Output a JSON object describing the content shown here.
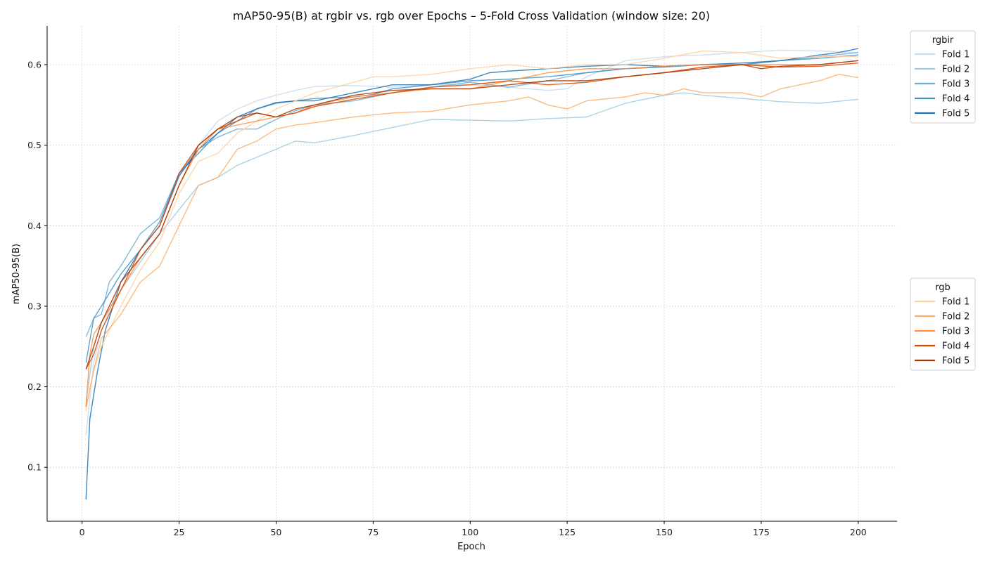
{
  "chart_data": {
    "type": "line",
    "title": "mAP50-95(B) at rgbir vs. rgb over Epochs – 5-Fold Cross Validation (window size: 20)",
    "xlabel": "Epoch",
    "ylabel": "mAP50-95(B)",
    "xlim": [
      -9,
      210
    ],
    "ylim": [
      0.033,
      0.648
    ],
    "xticks": [
      0,
      25,
      50,
      75,
      100,
      125,
      150,
      175,
      200
    ],
    "yticks": [
      0.1,
      0.2,
      0.3,
      0.4,
      0.5,
      0.6
    ],
    "grid": true,
    "legend_groups": [
      {
        "title": "rgbir",
        "placement": "upper-right-outside",
        "entries": [
          "Fold 1",
          "Fold 2",
          "Fold 3",
          "Fold 4",
          "Fold 5"
        ]
      },
      {
        "title": "rgb",
        "placement": "middle-right-outside",
        "entries": [
          "Fold 1",
          "Fold 2",
          "Fold 3",
          "Fold 4",
          "Fold 5"
        ]
      }
    ],
    "series": [
      {
        "group": "rgbir",
        "name": "Fold 1",
        "color": "#c6dbef",
        "points": [
          [
            1,
            0.14
          ],
          [
            3,
            0.23
          ],
          [
            5,
            0.27
          ],
          [
            10,
            0.33
          ],
          [
            15,
            0.37
          ],
          [
            20,
            0.4
          ],
          [
            25,
            0.46
          ],
          [
            30,
            0.5
          ],
          [
            35,
            0.53
          ],
          [
            40,
            0.545
          ],
          [
            45,
            0.555
          ],
          [
            50,
            0.562
          ],
          [
            55,
            0.568
          ],
          [
            60,
            0.573
          ],
          [
            70,
            0.574
          ],
          [
            80,
            0.572
          ],
          [
            90,
            0.575
          ],
          [
            100,
            0.575
          ],
          [
            110,
            0.572
          ],
          [
            120,
            0.568
          ],
          [
            125,
            0.57
          ],
          [
            130,
            0.585
          ],
          [
            135,
            0.595
          ],
          [
            140,
            0.605
          ],
          [
            150,
            0.61
          ],
          [
            160,
            0.612
          ],
          [
            170,
            0.615
          ],
          [
            180,
            0.618
          ],
          [
            190,
            0.617
          ],
          [
            200,
            0.615
          ]
        ]
      },
      {
        "group": "rgbir",
        "name": "Fold 2",
        "color": "#9ecae1",
        "points": [
          [
            1,
            0.18
          ],
          [
            3,
            0.25
          ],
          [
            5,
            0.28
          ],
          [
            10,
            0.32
          ],
          [
            15,
            0.355
          ],
          [
            20,
            0.39
          ],
          [
            25,
            0.42
          ],
          [
            30,
            0.45
          ],
          [
            35,
            0.46
          ],
          [
            40,
            0.475
          ],
          [
            45,
            0.485
          ],
          [
            50,
            0.495
          ],
          [
            55,
            0.505
          ],
          [
            60,
            0.503
          ],
          [
            70,
            0.512
          ],
          [
            80,
            0.522
          ],
          [
            90,
            0.532
          ],
          [
            100,
            0.531
          ],
          [
            110,
            0.53
          ],
          [
            120,
            0.533
          ],
          [
            130,
            0.535
          ],
          [
            140,
            0.552
          ],
          [
            150,
            0.562
          ],
          [
            155,
            0.565
          ],
          [
            160,
            0.562
          ],
          [
            170,
            0.558
          ],
          [
            180,
            0.554
          ],
          [
            190,
            0.552
          ],
          [
            200,
            0.557
          ]
        ]
      },
      {
        "group": "rgbir",
        "name": "Fold 3",
        "color": "#6baed6",
        "points": [
          [
            1,
            0.262
          ],
          [
            3,
            0.285
          ],
          [
            5,
            0.29
          ],
          [
            7,
            0.33
          ],
          [
            10,
            0.35
          ],
          [
            15,
            0.39
          ],
          [
            20,
            0.41
          ],
          [
            25,
            0.465
          ],
          [
            30,
            0.495
          ],
          [
            35,
            0.51
          ],
          [
            40,
            0.52
          ],
          [
            45,
            0.52
          ],
          [
            50,
            0.532
          ],
          [
            55,
            0.543
          ],
          [
            60,
            0.55
          ],
          [
            70,
            0.555
          ],
          [
            80,
            0.565
          ],
          [
            90,
            0.572
          ],
          [
            100,
            0.578
          ],
          [
            110,
            0.572
          ],
          [
            120,
            0.58
          ],
          [
            130,
            0.59
          ],
          [
            140,
            0.595
          ],
          [
            150,
            0.598
          ],
          [
            160,
            0.6
          ],
          [
            170,
            0.6
          ],
          [
            180,
            0.605
          ],
          [
            190,
            0.61
          ],
          [
            200,
            0.615
          ]
        ]
      },
      {
        "group": "rgbir",
        "name": "Fold 4",
        "color": "#4292c6",
        "points": [
          [
            1,
            0.23
          ],
          [
            3,
            0.285
          ],
          [
            5,
            0.3
          ],
          [
            10,
            0.34
          ],
          [
            15,
            0.37
          ],
          [
            20,
            0.405
          ],
          [
            25,
            0.465
          ],
          [
            30,
            0.49
          ],
          [
            35,
            0.515
          ],
          [
            40,
            0.53
          ],
          [
            45,
            0.545
          ],
          [
            50,
            0.552
          ],
          [
            55,
            0.555
          ],
          [
            60,
            0.558
          ],
          [
            70,
            0.56
          ],
          [
            75,
            0.563
          ],
          [
            80,
            0.57
          ],
          [
            90,
            0.575
          ],
          [
            100,
            0.58
          ],
          [
            110,
            0.582
          ],
          [
            120,
            0.585
          ],
          [
            130,
            0.59
          ],
          [
            140,
            0.595
          ],
          [
            150,
            0.597
          ],
          [
            160,
            0.6
          ],
          [
            170,
            0.6
          ],
          [
            180,
            0.605
          ],
          [
            190,
            0.608
          ],
          [
            200,
            0.612
          ]
        ]
      },
      {
        "group": "rgbir",
        "name": "Fold 5",
        "color": "#2171b5",
        "points": [
          [
            1,
            0.06
          ],
          [
            2,
            0.16
          ],
          [
            4,
            0.22
          ],
          [
            6,
            0.27
          ],
          [
            10,
            0.33
          ],
          [
            15,
            0.37
          ],
          [
            20,
            0.4
          ],
          [
            25,
            0.462
          ],
          [
            30,
            0.495
          ],
          [
            35,
            0.515
          ],
          [
            40,
            0.535
          ],
          [
            45,
            0.545
          ],
          [
            50,
            0.553
          ],
          [
            55,
            0.555
          ],
          [
            60,
            0.555
          ],
          [
            70,
            0.565
          ],
          [
            75,
            0.57
          ],
          [
            80,
            0.575
          ],
          [
            90,
            0.575
          ],
          [
            100,
            0.582
          ],
          [
            105,
            0.59
          ],
          [
            110,
            0.592
          ],
          [
            120,
            0.595
          ],
          [
            130,
            0.598
          ],
          [
            140,
            0.6
          ],
          [
            150,
            0.598
          ],
          [
            160,
            0.6
          ],
          [
            170,
            0.602
          ],
          [
            180,
            0.605
          ],
          [
            190,
            0.612
          ],
          [
            195,
            0.615
          ],
          [
            200,
            0.62
          ]
        ]
      },
      {
        "group": "rgb",
        "name": "Fold 1",
        "color": "#fdd0a2",
        "points": [
          [
            1,
            0.17
          ],
          [
            3,
            0.22
          ],
          [
            5,
            0.25
          ],
          [
            10,
            0.3
          ],
          [
            15,
            0.345
          ],
          [
            20,
            0.38
          ],
          [
            25,
            0.44
          ],
          [
            30,
            0.48
          ],
          [
            35,
            0.49
          ],
          [
            40,
            0.515
          ],
          [
            45,
            0.53
          ],
          [
            50,
            0.545
          ],
          [
            55,
            0.555
          ],
          [
            60,
            0.565
          ],
          [
            70,
            0.578
          ],
          [
            75,
            0.585
          ],
          [
            80,
            0.585
          ],
          [
            90,
            0.588
          ],
          [
            100,
            0.595
          ],
          [
            110,
            0.6
          ],
          [
            120,
            0.595
          ],
          [
            130,
            0.6
          ],
          [
            140,
            0.6
          ],
          [
            150,
            0.608
          ],
          [
            160,
            0.617
          ],
          [
            170,
            0.615
          ],
          [
            180,
            0.608
          ],
          [
            190,
            0.61
          ],
          [
            200,
            0.61
          ]
        ]
      },
      {
        "group": "rgb",
        "name": "Fold 2",
        "color": "#fdae6b",
        "points": [
          [
            1,
            0.175
          ],
          [
            3,
            0.22
          ],
          [
            5,
            0.26
          ],
          [
            10,
            0.29
          ],
          [
            15,
            0.33
          ],
          [
            20,
            0.35
          ],
          [
            25,
            0.4
          ],
          [
            30,
            0.45
          ],
          [
            35,
            0.46
          ],
          [
            40,
            0.495
          ],
          [
            45,
            0.505
          ],
          [
            50,
            0.52
          ],
          [
            55,
            0.525
          ],
          [
            60,
            0.528
          ],
          [
            70,
            0.535
          ],
          [
            80,
            0.54
          ],
          [
            90,
            0.542
          ],
          [
            100,
            0.55
          ],
          [
            110,
            0.555
          ],
          [
            115,
            0.56
          ],
          [
            120,
            0.55
          ],
          [
            125,
            0.545
          ],
          [
            130,
            0.555
          ],
          [
            140,
            0.56
          ],
          [
            145,
            0.565
          ],
          [
            150,
            0.562
          ],
          [
            155,
            0.57
          ],
          [
            160,
            0.565
          ],
          [
            170,
            0.565
          ],
          [
            175,
            0.56
          ],
          [
            180,
            0.57
          ],
          [
            185,
            0.575
          ],
          [
            190,
            0.58
          ],
          [
            195,
            0.588
          ],
          [
            200,
            0.584
          ]
        ]
      },
      {
        "group": "rgb",
        "name": "Fold 3",
        "color": "#fd8d3c",
        "points": [
          [
            1,
            0.175
          ],
          [
            2,
            0.24
          ],
          [
            3,
            0.265
          ],
          [
            5,
            0.28
          ],
          [
            10,
            0.32
          ],
          [
            15,
            0.36
          ],
          [
            20,
            0.39
          ],
          [
            25,
            0.45
          ],
          [
            30,
            0.495
          ],
          [
            35,
            0.52
          ],
          [
            40,
            0.525
          ],
          [
            45,
            0.53
          ],
          [
            50,
            0.535
          ],
          [
            55,
            0.54
          ],
          [
            60,
            0.55
          ],
          [
            70,
            0.56
          ],
          [
            80,
            0.565
          ],
          [
            90,
            0.57
          ],
          [
            100,
            0.57
          ],
          [
            110,
            0.58
          ],
          [
            120,
            0.59
          ],
          [
            130,
            0.595
          ],
          [
            140,
            0.595
          ],
          [
            150,
            0.598
          ],
          [
            160,
            0.6
          ],
          [
            170,
            0.6
          ],
          [
            180,
            0.6
          ],
          [
            190,
            0.6
          ],
          [
            200,
            0.605
          ]
        ]
      },
      {
        "group": "rgb",
        "name": "Fold 4",
        "color": "#d94801",
        "points": [
          [
            1,
            0.222
          ],
          [
            3,
            0.24
          ],
          [
            5,
            0.27
          ],
          [
            10,
            0.32
          ],
          [
            15,
            0.37
          ],
          [
            20,
            0.4
          ],
          [
            25,
            0.465
          ],
          [
            30,
            0.5
          ],
          [
            35,
            0.52
          ],
          [
            40,
            0.53
          ],
          [
            45,
            0.54
          ],
          [
            50,
            0.535
          ],
          [
            55,
            0.54
          ],
          [
            60,
            0.548
          ],
          [
            70,
            0.557
          ],
          [
            80,
            0.565
          ],
          [
            90,
            0.572
          ],
          [
            100,
            0.575
          ],
          [
            110,
            0.58
          ],
          [
            120,
            0.575
          ],
          [
            130,
            0.578
          ],
          [
            140,
            0.585
          ],
          [
            150,
            0.59
          ],
          [
            160,
            0.597
          ],
          [
            170,
            0.6
          ],
          [
            180,
            0.597
          ],
          [
            190,
            0.598
          ],
          [
            200,
            0.602
          ]
        ]
      },
      {
        "group": "rgb",
        "name": "Fold 5",
        "color": "#a63603",
        "points": [
          [
            1,
            0.222
          ],
          [
            3,
            0.25
          ],
          [
            5,
            0.28
          ],
          [
            10,
            0.33
          ],
          [
            15,
            0.36
          ],
          [
            20,
            0.39
          ],
          [
            25,
            0.45
          ],
          [
            30,
            0.5
          ],
          [
            35,
            0.52
          ],
          [
            40,
            0.535
          ],
          [
            45,
            0.54
          ],
          [
            50,
            0.535
          ],
          [
            55,
            0.545
          ],
          [
            60,
            0.55
          ],
          [
            70,
            0.562
          ],
          [
            80,
            0.568
          ],
          [
            90,
            0.57
          ],
          [
            100,
            0.57
          ],
          [
            110,
            0.575
          ],
          [
            120,
            0.58
          ],
          [
            130,
            0.58
          ],
          [
            140,
            0.585
          ],
          [
            150,
            0.59
          ],
          [
            160,
            0.595
          ],
          [
            170,
            0.6
          ],
          [
            175,
            0.595
          ],
          [
            180,
            0.598
          ],
          [
            190,
            0.6
          ],
          [
            200,
            0.605
          ]
        ]
      }
    ]
  }
}
